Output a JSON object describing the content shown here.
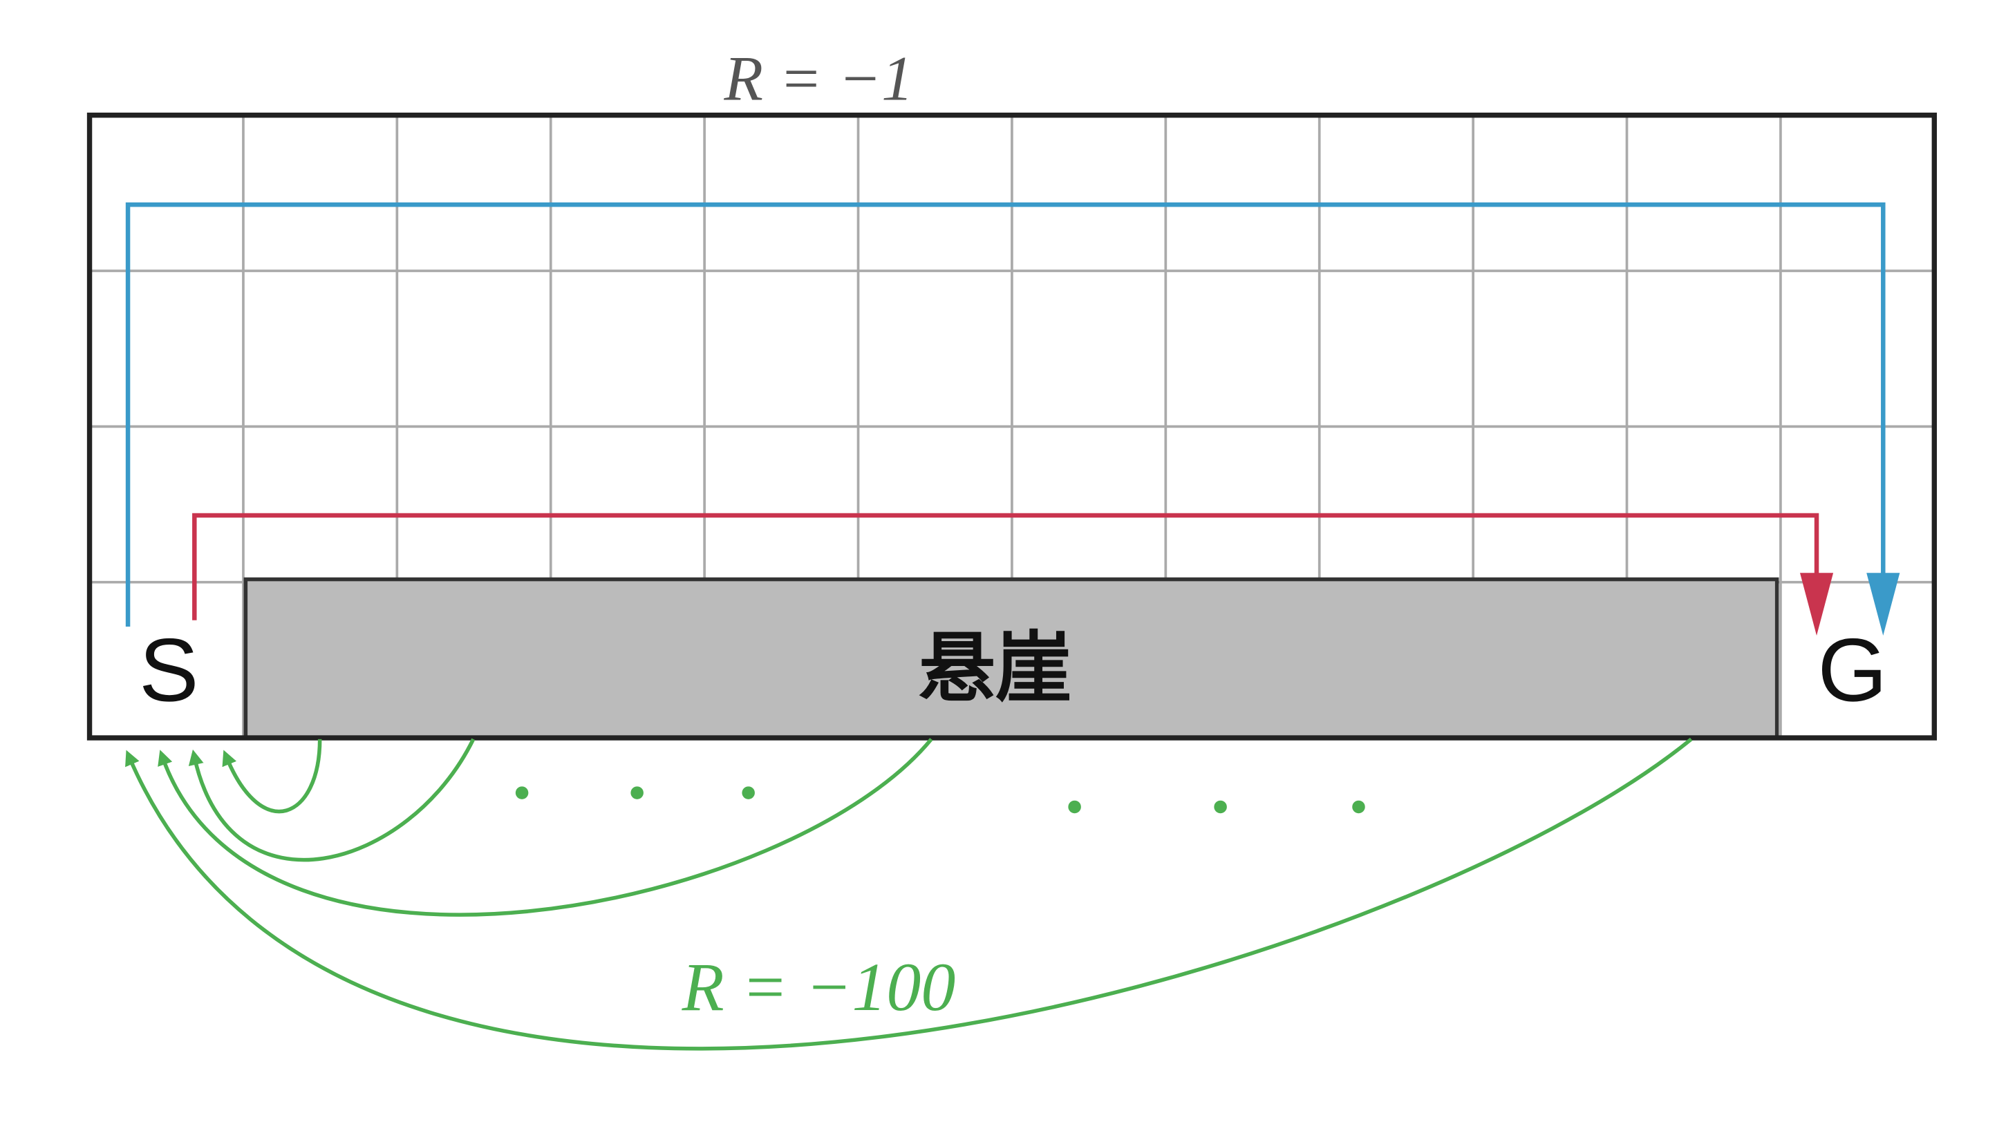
{
  "diagram": {
    "top_reward_label": "R = −1",
    "bottom_reward_label": "R = −100",
    "start_label": "S",
    "goal_label": "G",
    "cliff_label": "悬崖",
    "grid": {
      "columns": 12,
      "rows": 4
    },
    "colors": {
      "safe_path": "#3a9ac9",
      "optimal_path": "#c9344e",
      "cliff_fall": "#4caf50",
      "cliff_fill": "#bbbbbb",
      "grid_line": "#aaaaaa",
      "border": "#222222"
    }
  }
}
